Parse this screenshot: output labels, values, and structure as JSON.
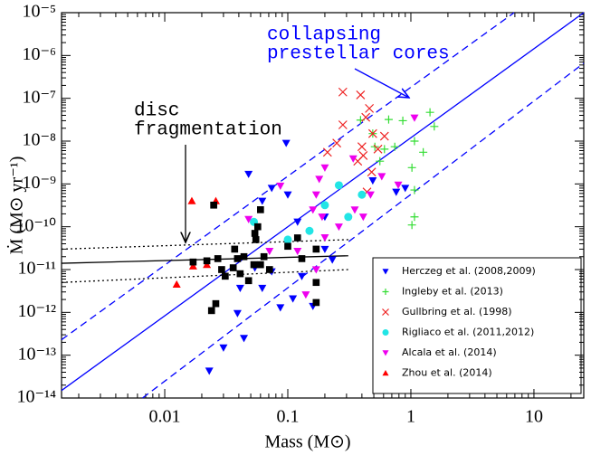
{
  "chart_data": {
    "type": "scatter",
    "xlabel": "Mass (M⊙)",
    "ylabel": "Ṁ (M⊙ yr⁻¹)",
    "xscale": "log",
    "yscale": "log",
    "xlim": [
      0.00145,
      25.4
    ],
    "ylim": [
      1e-14,
      1e-05
    ],
    "xticks": [
      0.01,
      0.1,
      1,
      10
    ],
    "yticks": [
      {
        "value": 1e-05,
        "label": "10⁻⁵"
      },
      {
        "value": 1e-06,
        "label": "10⁻⁶"
      },
      {
        "value": 1e-07,
        "label": "10⁻⁷"
      },
      {
        "value": 1e-08,
        "label": "10⁻⁸"
      },
      {
        "value": 1e-09,
        "label": "10⁻⁹"
      },
      {
        "value": 1e-10,
        "label": "10⁻¹⁰"
      },
      {
        "value": 1e-11,
        "label": "10⁻¹¹"
      },
      {
        "value": 1e-12,
        "label": "10⁻¹²"
      },
      {
        "value": 1e-13,
        "label": "10⁻¹³"
      },
      {
        "value": 1e-14,
        "label": "10⁻¹⁴"
      }
    ],
    "legend": "lower right",
    "annotations": [
      {
        "lines": [
          "collapsing",
          "prestellar cores"
        ],
        "color": "#0000ff"
      },
      {
        "lines": [
          "disc",
          "fragmentation"
        ],
        "color": "#000000"
      }
    ],
    "lines": [
      {
        "style": "solid",
        "color": "#0000ff",
        "x": [
          0.00145,
          25.4
        ],
        "y": [
          1.5e-14,
          1e-05
        ]
      },
      {
        "style": "dashed",
        "color": "#0000ff",
        "x": [
          0.00145,
          6.9
        ],
        "y": [
          2.3e-13,
          1e-05
        ]
      },
      {
        "style": "dashed",
        "color": "#0000ff",
        "x": [
          0.0066,
          25.4
        ],
        "y": [
          1e-14,
          6.6e-07
        ]
      },
      {
        "style": "solid",
        "color": "#000000",
        "x": [
          0.00145,
          0.31
        ],
        "y": [
          1.4e-11,
          2.1e-11
        ]
      },
      {
        "style": "dotted",
        "color": "#000000",
        "x": [
          0.00145,
          0.31
        ],
        "y": [
          3e-11,
          5e-11
        ]
      },
      {
        "style": "dotted",
        "color": "#000000",
        "x": [
          0.00145,
          0.31
        ],
        "y": [
          5e-12,
          1e-11
        ]
      }
    ],
    "series": [
      {
        "name": "Herczeg et al. (2008,2009)",
        "color": "#0000ff",
        "marker": "triangle-down",
        "x": [
          0.097,
          0.074,
          0.048,
          0.2,
          0.062,
          0.1,
          0.041,
          0.062,
          0.039,
          0.11,
          0.074,
          0.13,
          0.087,
          0.044,
          0.23,
          0.03,
          0.16,
          0.023,
          0.054,
          0.2,
          0.12,
          0.9,
          0.76,
          0.49
        ],
        "y": [
          9e-09,
          8e-10,
          1.7e-09,
          1.7e-10,
          4e-10,
          5.6e-10,
          3.7e-12,
          3.7e-12,
          9.5e-13,
          2.1e-12,
          9e-12,
          7e-12,
          1.3e-12,
          2.5e-13,
          1.7e-11,
          1.5e-13,
          1.4e-12,
          4.3e-14,
          1.1e-11,
          3e-11,
          1.3e-10,
          8e-10,
          6.5e-10,
          1.2e-09
        ]
      },
      {
        "name": "Ingleby et al. (2013)",
        "color": "#33dd33",
        "marker": "plus",
        "x": [
          0.66,
          0.86,
          1.43,
          0.39,
          1.07,
          1.26,
          0.49,
          0.61,
          0.56,
          1.02,
          1.07,
          1.07,
          1.02,
          0.74,
          0.51,
          1.55
        ],
        "y": [
          3.2e-08,
          3e-08,
          4.7e-08,
          3.1e-08,
          1e-08,
          5.5e-09,
          1.5e-08,
          6.5e-09,
          3.4e-09,
          2.4e-09,
          7.2e-10,
          1.7e-10,
          1.1e-10,
          7.4e-09,
          7.4e-09,
          2.2e-08
        ]
      },
      {
        "name": "Gullbring et al. (1998)",
        "color": "#ee2222",
        "marker": "x",
        "x": [
          0.28,
          0.39,
          0.43,
          0.28,
          0.46,
          0.49,
          0.4,
          0.37,
          0.41,
          0.48,
          0.44,
          0.54,
          0.61,
          0.21,
          0.25
        ],
        "y": [
          1.4e-07,
          1.2e-07,
          3.6e-08,
          2.4e-08,
          5.8e-08,
          1.5e-08,
          7.4e-09,
          3.4e-09,
          4.6e-09,
          1.9e-09,
          6.5e-10,
          6.5e-09,
          1.3e-08,
          5.5e-09,
          9e-09
        ]
      },
      {
        "name": "Rigliaco et al. (2011,2012)",
        "color": "#22e5e5",
        "marker": "circle",
        "x": [
          0.053,
          0.15,
          0.2,
          0.26,
          0.31,
          0.4,
          0.1
        ],
        "y": [
          1.3e-10,
          8e-11,
          3.2e-10,
          9.3e-10,
          1.7e-10,
          5.6e-10,
          5e-11
        ]
      },
      {
        "name": "Alcala et al. (2014)",
        "color": "#ee00ee",
        "marker": "triangle-down",
        "x": [
          0.16,
          0.18,
          0.2,
          0.17,
          0.2,
          0.12,
          0.19,
          0.14,
          0.17,
          0.35,
          0.41,
          0.47,
          0.58,
          0.79,
          1.07,
          0.26,
          0.087,
          0.048,
          0.071,
          0.34
        ],
        "y": [
          2.5e-10,
          1.3e-09,
          2.4e-09,
          5.6e-10,
          5.6e-11,
          2.7e-11,
          1.7e-10,
          2.6e-12,
          1e-11,
          2.5e-10,
          1.7e-10,
          5.6e-10,
          1.5e-09,
          9.5e-10,
          3.5e-08,
          1e-10,
          9e-10,
          1.5e-10,
          2.7e-11,
          3.9e-09
        ]
      },
      {
        "name": "Zhou et al. (2014)",
        "color": "#ff0000",
        "marker": "triangle-up",
        "x": [
          0.0166,
          0.026,
          0.0125,
          0.017,
          0.022
        ],
        "y": [
          4e-10,
          4e-10,
          4.5e-12,
          1.2e-11,
          1.3e-11
        ]
      },
      {
        "color": "#000000",
        "marker": "square",
        "x": [
          0.025,
          0.036,
          0.037,
          0.054,
          0.057,
          0.06,
          0.055,
          0.039,
          0.044,
          0.027,
          0.024,
          0.029,
          0.031,
          0.06,
          0.064,
          0.1,
          0.12,
          0.13,
          0.17,
          0.17,
          0.17,
          0.071,
          0.048,
          0.017,
          0.022,
          0.026,
          0.041,
          0.053
        ],
        "y": [
          3.2e-10,
          1.1e-11,
          3e-11,
          7e-11,
          1e-10,
          2.5e-10,
          5e-11,
          1.8e-11,
          2e-11,
          1.8e-11,
          1.1e-12,
          1e-11,
          7e-12,
          1.3e-11,
          2e-11,
          3.5e-11,
          5.5e-11,
          1.8e-11,
          3e-11,
          5e-12,
          1.7e-12,
          1e-11,
          5.5e-12,
          1.5e-11,
          1.6e-11,
          1.6e-12,
          8e-12,
          1.3e-11
        ]
      }
    ]
  }
}
